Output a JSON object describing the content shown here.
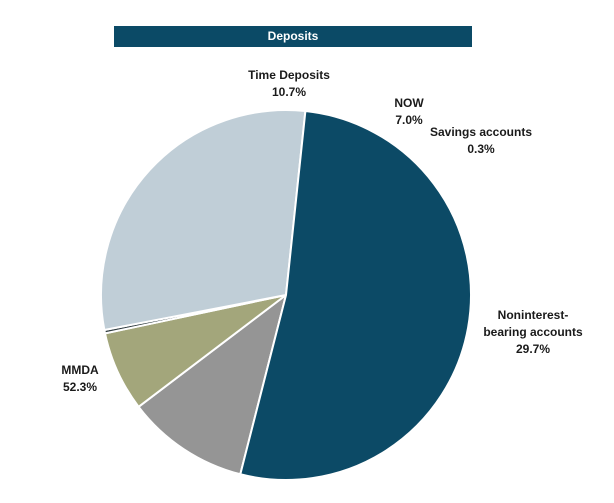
{
  "chart_data": {
    "type": "pie",
    "title": "Deposits",
    "start_angle_deg": 194.3,
    "direction": "clockwise",
    "colors": {
      "slice_border": "#ffffff",
      "title_bar_bg": "#0b4a66",
      "title_text": "#ffffff"
    },
    "slices": [
      {
        "id": "time-deposits",
        "label_lines": [
          "Time Deposits",
          "10.7%"
        ],
        "value": 10.7,
        "color": "#959595"
      },
      {
        "id": "now",
        "label_lines": [
          "NOW",
          "7.0%"
        ],
        "value": 7.0,
        "color": "#a3a67b"
      },
      {
        "id": "savings-accounts",
        "label_lines": [
          "Savings accounts",
          "0.3%"
        ],
        "value": 0.3,
        "color": "#2f3b3f"
      },
      {
        "id": "noninterest-bearing-accounts",
        "label_lines": [
          "Noninterest-",
          "bearing accounts",
          "29.7%"
        ],
        "value": 29.7,
        "color": "#c0ced7"
      },
      {
        "id": "mmda",
        "label_lines": [
          "MMDA",
          "52.3%"
        ],
        "value": 52.3,
        "color": "#0c4a66"
      }
    ]
  }
}
